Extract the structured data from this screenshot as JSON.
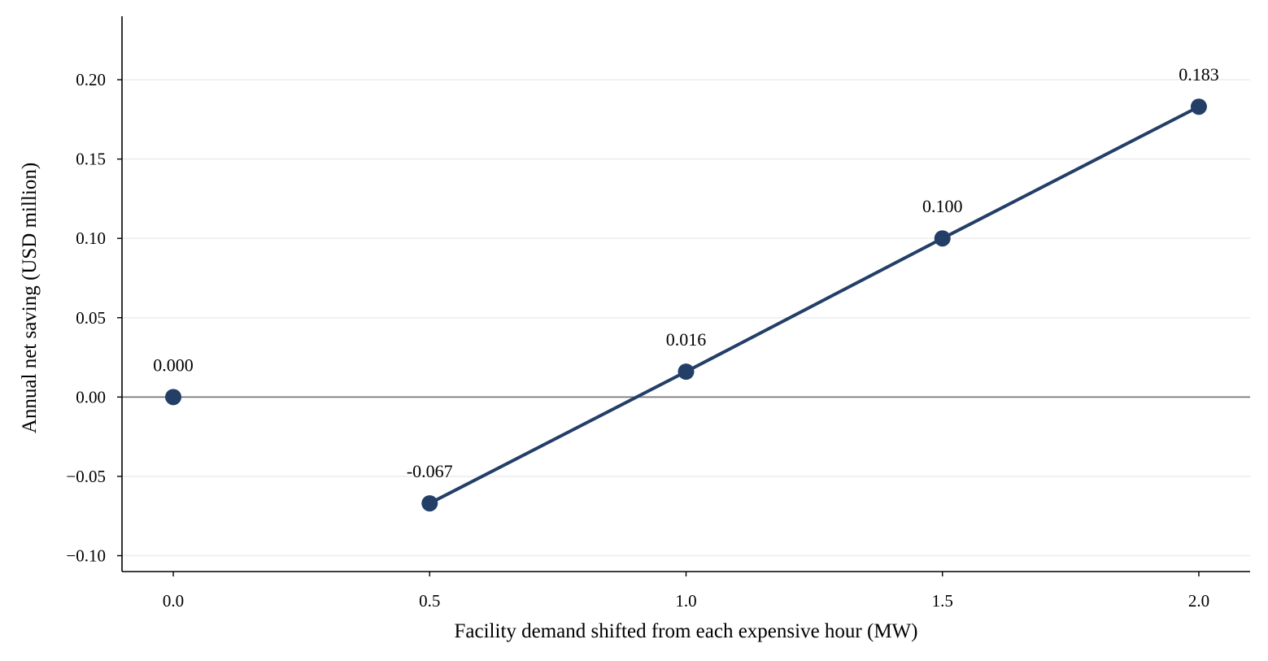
{
  "chart_data": {
    "type": "line",
    "title": "",
    "xlabel": "Facility demand shifted from each expensive hour (MW)",
    "ylabel": "Annual net saving (USD million)",
    "xlim": [
      -0.1,
      2.1
    ],
    "ylim": [
      -0.11,
      0.24
    ],
    "xticks": [
      0.0,
      0.5,
      1.0,
      1.5,
      2.0
    ],
    "xtick_labels": [
      "0.0",
      "0.5",
      "1.0",
      "1.5",
      "2.0"
    ],
    "yticks": [
      -0.1,
      -0.05,
      0.0,
      0.05,
      0.1,
      0.15,
      0.2
    ],
    "ytick_labels": [
      "−0.10",
      "−0.05",
      "0.00",
      "0.05",
      "0.10",
      "0.15",
      "0.20"
    ],
    "grid": "horizontal",
    "reference_line_y": 0.0,
    "points": [
      {
        "x": 0.0,
        "y": 0.0,
        "label": "0.000"
      },
      {
        "x": 0.5,
        "y": -0.067,
        "label": "-0.067"
      },
      {
        "x": 1.0,
        "y": 0.016,
        "label": "0.016"
      },
      {
        "x": 1.5,
        "y": 0.1,
        "label": "0.100"
      },
      {
        "x": 2.0,
        "y": 0.183,
        "label": "0.183"
      }
    ],
    "connected_from_index": 1,
    "colors": {
      "series": "#233f68",
      "grid": "#ebebeb",
      "zero_line": "#777777",
      "axis": "#000000"
    }
  }
}
